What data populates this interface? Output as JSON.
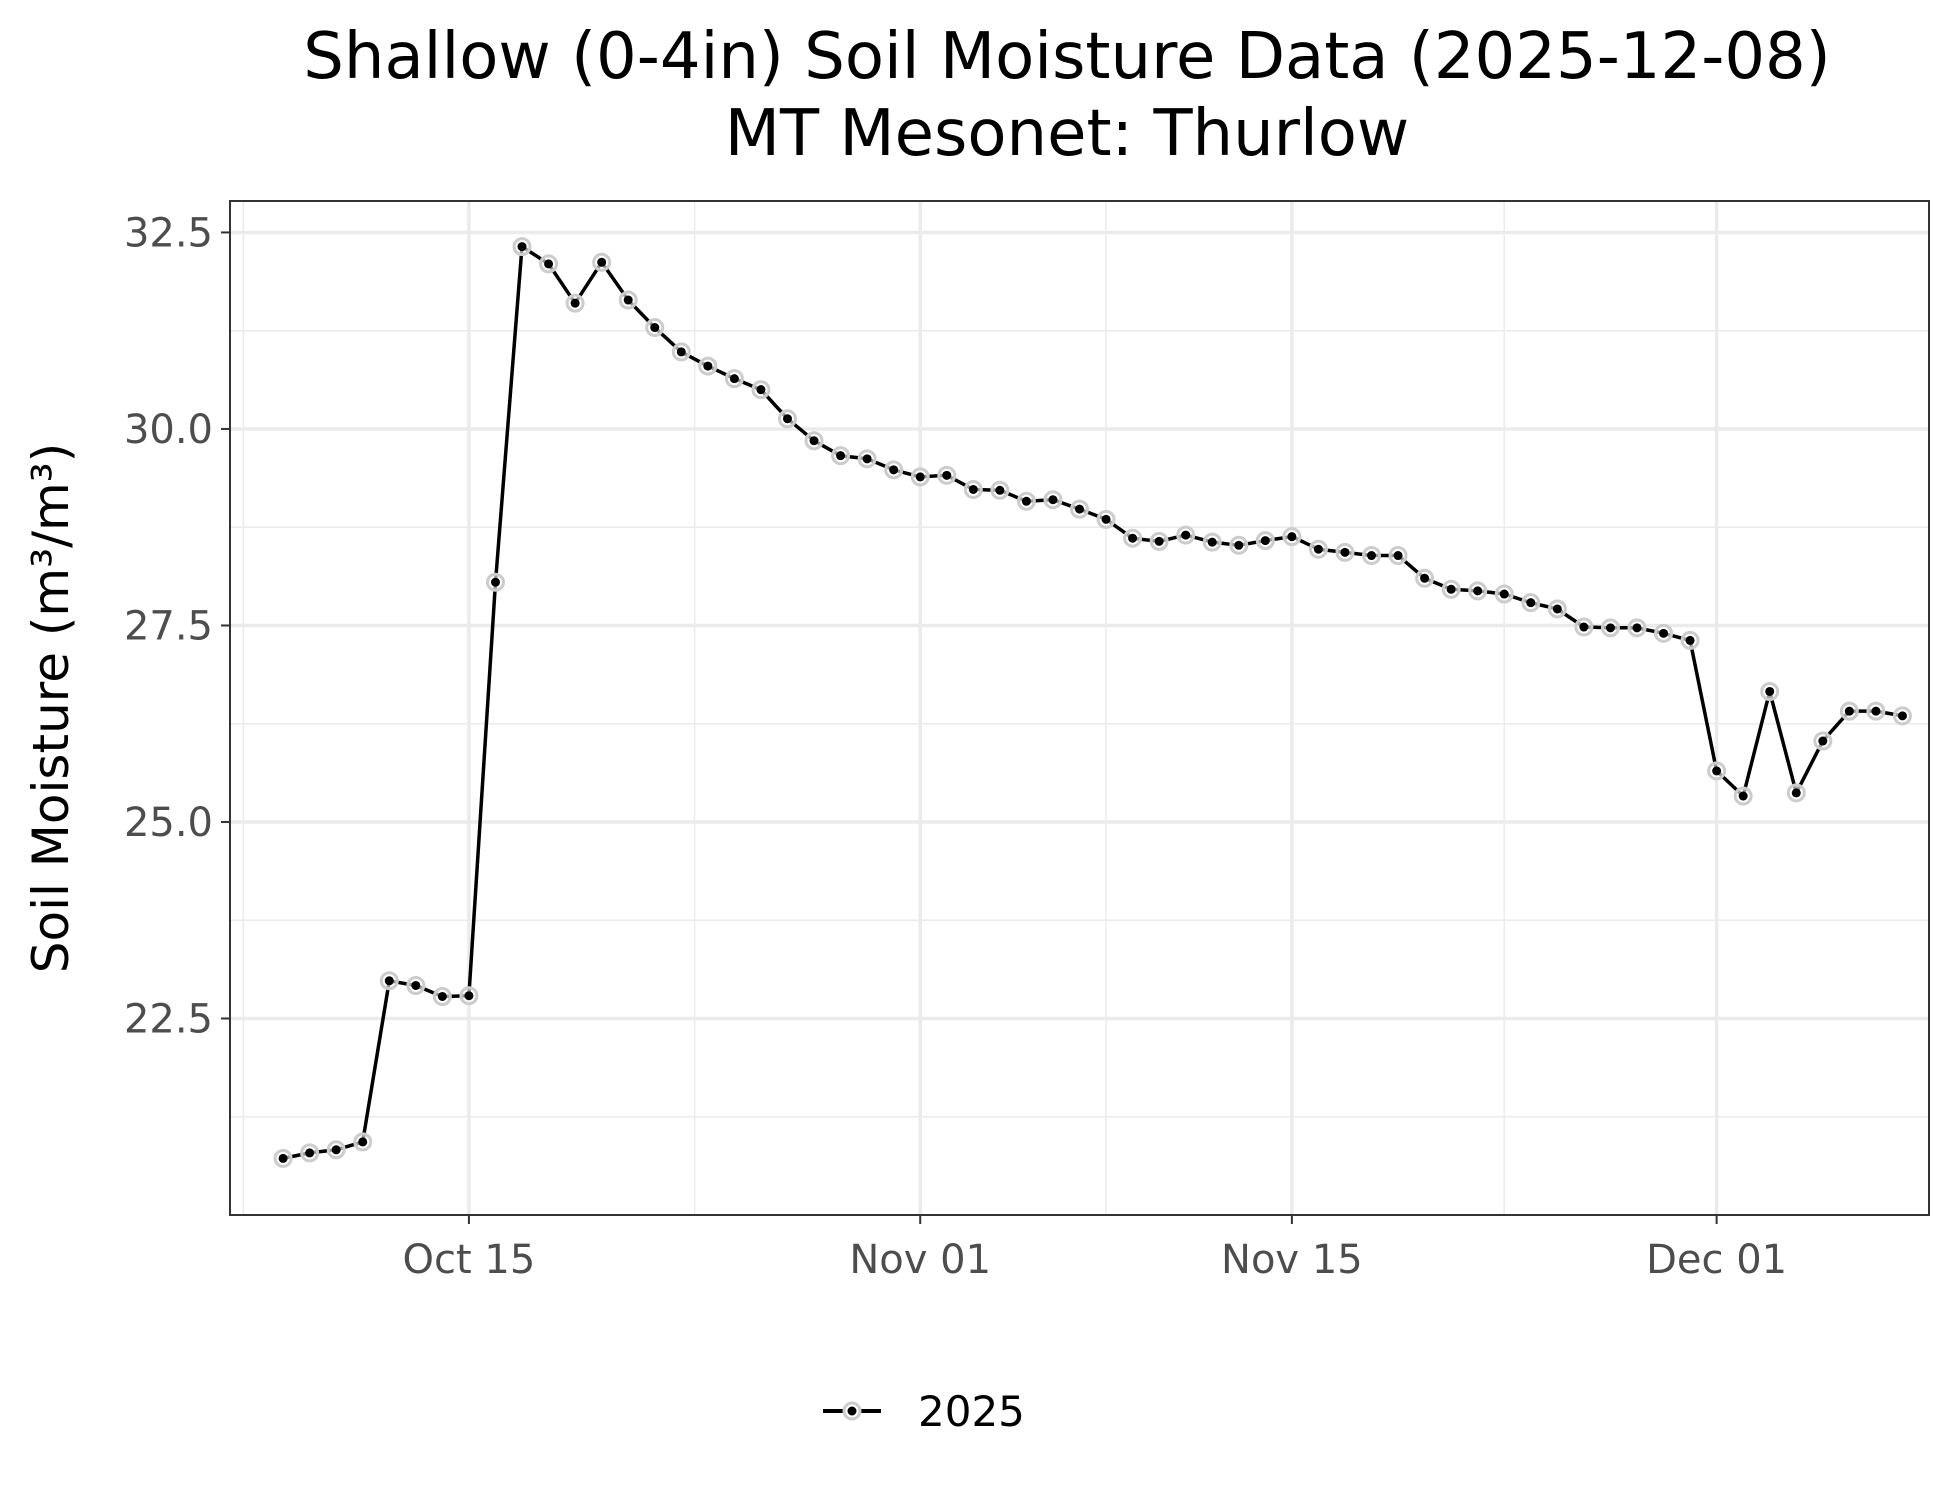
{
  "chart_data": {
    "type": "line",
    "title": "Shallow (0-4in) Soil Moisture Data (2025-12-08)",
    "subtitle": "MT Mesonet: Thurlow",
    "xlabel": "",
    "ylabel": "Soil Moisture (m³/m³)",
    "xlim": [
      "2025-10-06",
      "2025-12-09"
    ],
    "ylim": [
      20.0,
      32.9
    ],
    "yticks": [
      22.5,
      25.0,
      27.5,
      30.0,
      32.5
    ],
    "ytick_labels": [
      "22.5",
      "25.0",
      "27.5",
      "30.0",
      "32.5"
    ],
    "xticks": [
      "2025-10-15",
      "2025-11-01",
      "2025-11-15",
      "2025-12-01"
    ],
    "xtick_labels": [
      "Oct 15",
      "Nov 01",
      "Nov 15",
      "Dec 01"
    ],
    "grid": true,
    "legend_position": "bottom",
    "series": [
      {
        "name": "2025",
        "color": "#000000",
        "x": [
          "2025-10-08",
          "2025-10-09",
          "2025-10-10",
          "2025-10-11",
          "2025-10-12",
          "2025-10-13",
          "2025-10-14",
          "2025-10-15",
          "2025-10-16",
          "2025-10-17",
          "2025-10-18",
          "2025-10-19",
          "2025-10-20",
          "2025-10-21",
          "2025-10-22",
          "2025-10-23",
          "2025-10-24",
          "2025-10-25",
          "2025-10-26",
          "2025-10-27",
          "2025-10-28",
          "2025-10-29",
          "2025-10-30",
          "2025-10-31",
          "2025-11-01",
          "2025-11-02",
          "2025-11-03",
          "2025-11-04",
          "2025-11-05",
          "2025-11-06",
          "2025-11-07",
          "2025-11-08",
          "2025-11-09",
          "2025-11-10",
          "2025-11-11",
          "2025-11-12",
          "2025-11-13",
          "2025-11-14",
          "2025-11-15",
          "2025-11-16",
          "2025-11-17",
          "2025-11-18",
          "2025-11-19",
          "2025-11-20",
          "2025-11-21",
          "2025-11-22",
          "2025-11-23",
          "2025-11-24",
          "2025-11-25",
          "2025-11-26",
          "2025-11-27",
          "2025-11-28",
          "2025-11-29",
          "2025-11-30",
          "2025-12-01",
          "2025-12-02",
          "2025-12-03",
          "2025-12-04",
          "2025-12-05",
          "2025-12-06",
          "2025-12-07",
          "2025-12-08"
        ],
        "values": [
          20.72,
          20.79,
          20.83,
          20.93,
          22.98,
          22.92,
          22.78,
          22.79,
          28.05,
          32.32,
          32.1,
          31.6,
          32.12,
          31.64,
          31.29,
          30.98,
          30.8,
          30.64,
          30.5,
          30.13,
          29.85,
          29.66,
          29.62,
          29.48,
          29.39,
          29.41,
          29.23,
          29.22,
          29.08,
          29.1,
          28.98,
          28.85,
          28.61,
          28.57,
          28.65,
          28.56,
          28.52,
          28.58,
          28.63,
          28.47,
          28.43,
          28.39,
          28.39,
          28.1,
          27.96,
          27.94,
          27.9,
          27.79,
          27.71,
          27.48,
          27.47,
          27.47,
          27.4,
          27.31,
          25.65,
          25.33,
          26.66,
          25.37,
          26.03,
          26.41,
          26.41,
          26.35
        ]
      }
    ]
  }
}
